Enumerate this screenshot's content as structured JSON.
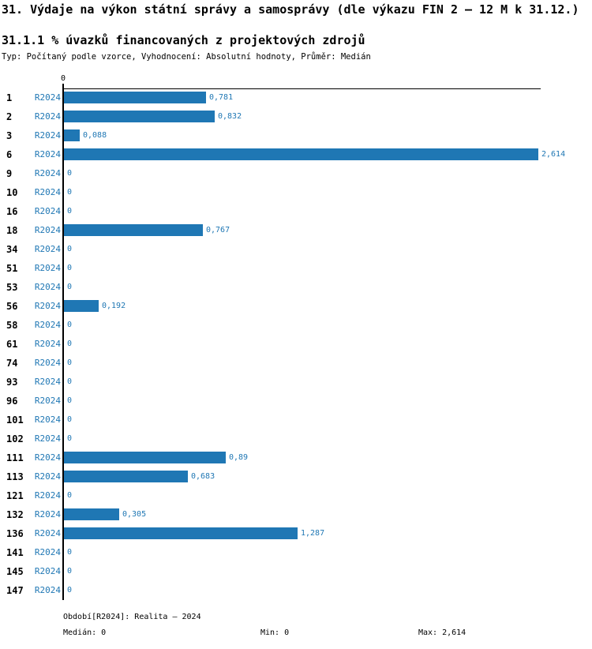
{
  "header": {
    "title": "31. Výdaje na výkon státní správy a samosprávy (dle výkazu FIN 2 – 12 M k 31.12.)",
    "subtitle": "31.1.1 % úvazků financovaných z projektových zdrojů",
    "meta": "Typ: Počítaný podle vzorce, Vyhodnocení: Absolutní hodnoty, Průměr: Medián"
  },
  "chart_data": {
    "type": "bar",
    "orientation": "horizontal",
    "series_name": "R2024",
    "axis_origin_label": "0",
    "xlim": [
      0,
      2.63
    ],
    "grid": false,
    "categories": [
      "1",
      "2",
      "3",
      "6",
      "9",
      "10",
      "16",
      "18",
      "34",
      "51",
      "53",
      "56",
      "58",
      "61",
      "74",
      "93",
      "96",
      "101",
      "102",
      "111",
      "113",
      "121",
      "132",
      "136",
      "141",
      "145",
      "147"
    ],
    "values": [
      0.781,
      0.832,
      0.088,
      2.614,
      0,
      0,
      0,
      0.767,
      0,
      0,
      0,
      0.192,
      0,
      0,
      0,
      0,
      0,
      0,
      0,
      0.89,
      0.683,
      0,
      0.305,
      1.287,
      0,
      0,
      0
    ],
    "value_labels": [
      "0,781",
      "0,832",
      "0,088",
      "2,614",
      "0",
      "0",
      "0",
      "0,767",
      "0",
      "0",
      "0",
      "0,192",
      "0",
      "0",
      "0",
      "0",
      "0",
      "0",
      "0",
      "0,89",
      "0,683",
      "0",
      "0,305",
      "1,287",
      "0",
      "0",
      "0"
    ],
    "bar_color": "#1f77b4",
    "label_color": "#1f77b4"
  },
  "footer": {
    "period": "Období[R2024]: Realita – 2024",
    "median": "Medián: 0",
    "min": "Min: 0",
    "max": "Max: 2,614"
  }
}
